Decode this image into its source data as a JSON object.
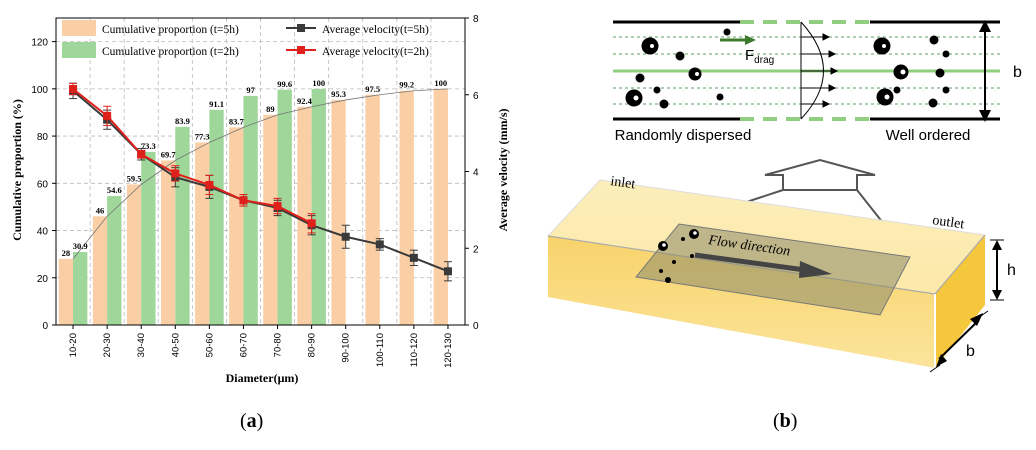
{
  "chart_data": {
    "type": "bar+line",
    "categories": [
      "10-20",
      "20-30",
      "30-40",
      "40-50",
      "50-60",
      "60-70",
      "70-80",
      "80-90",
      "90-100",
      "100-110",
      "110-120",
      "120-130"
    ],
    "bar_series": [
      {
        "name": "Cumulative proportion (t=5h)",
        "color": "#fbcfa5",
        "values": [
          28,
          46,
          59.5,
          69.7,
          77.3,
          83.7,
          89,
          92.4,
          95.3,
          97.5,
          99.2,
          100
        ],
        "labels": [
          "28",
          "46",
          "59.5",
          "69.7",
          "77.3",
          "83.7",
          "89",
          "92.4",
          "95.3",
          "97.5",
          "99.2",
          "100"
        ]
      },
      {
        "name": "Cumulative proportion (t=2h)",
        "color": "#9fd69a",
        "values": [
          30.9,
          54.6,
          73.3,
          83.9,
          91.1,
          97,
          99.6,
          100,
          null,
          null,
          null,
          null
        ],
        "labels": [
          "30.9",
          "54.6",
          "73.3",
          "83.9",
          "91.1",
          "97",
          "99.6",
          "100",
          "",
          "",
          "",
          ""
        ]
      }
    ],
    "line_series": [
      {
        "name": "Average velocity(t=5h)",
        "color": "#3a3a3a",
        "values": [
          6.1,
          5.35,
          4.45,
          3.85,
          3.6,
          3.25,
          3.05,
          2.6,
          2.3,
          2.1,
          1.75,
          1.4
        ],
        "errors": [
          0.2,
          0.25,
          0.15,
          0.25,
          0.3,
          0.15,
          0.2,
          0.25,
          0.3,
          0.15,
          0.2,
          0.25
        ]
      },
      {
        "name": "Average velocity(t=2h)",
        "color": "#e0201b",
        "values": [
          6.15,
          5.45,
          4.45,
          3.95,
          3.65,
          3.25,
          3.1,
          2.65
        ],
        "errors": [
          0.15,
          0.25,
          0.1,
          0.2,
          0.25,
          0.15,
          0.2,
          0.25
        ]
      }
    ],
    "fit_curve_label": "",
    "xlabel": "Diameter(μm)",
    "ylabel": "Cumulative proportion (%)",
    "y2label": "Average velocity (mm/s)",
    "ylim": [
      0,
      130
    ],
    "yticks": [
      0,
      20,
      40,
      60,
      80,
      100,
      120
    ],
    "y2lim": [
      0,
      8
    ],
    "y2ticks": [
      0,
      2,
      4,
      6,
      8
    ],
    "legend_position": "top"
  },
  "schematic": {
    "fdrag_label_main": "F",
    "fdrag_label_sub": "drag",
    "randomly_dispersed": "Randomly dispersed",
    "well_ordered": "Well ordered",
    "b_label_top": "b",
    "inlet": "inlet",
    "outlet": "outlet",
    "flow_direction": "Flow direction",
    "h_label": "h",
    "b_label_bottom": "b"
  },
  "captions": {
    "a": "a",
    "b": "b"
  },
  "colors": {
    "bar5h": "#fbcfa5",
    "bar2h": "#9fd69a",
    "line5h": "#3a3a3a",
    "line2h": "#e0201b",
    "channel": "#f6d66a",
    "green_line": "#8fcf7f"
  }
}
